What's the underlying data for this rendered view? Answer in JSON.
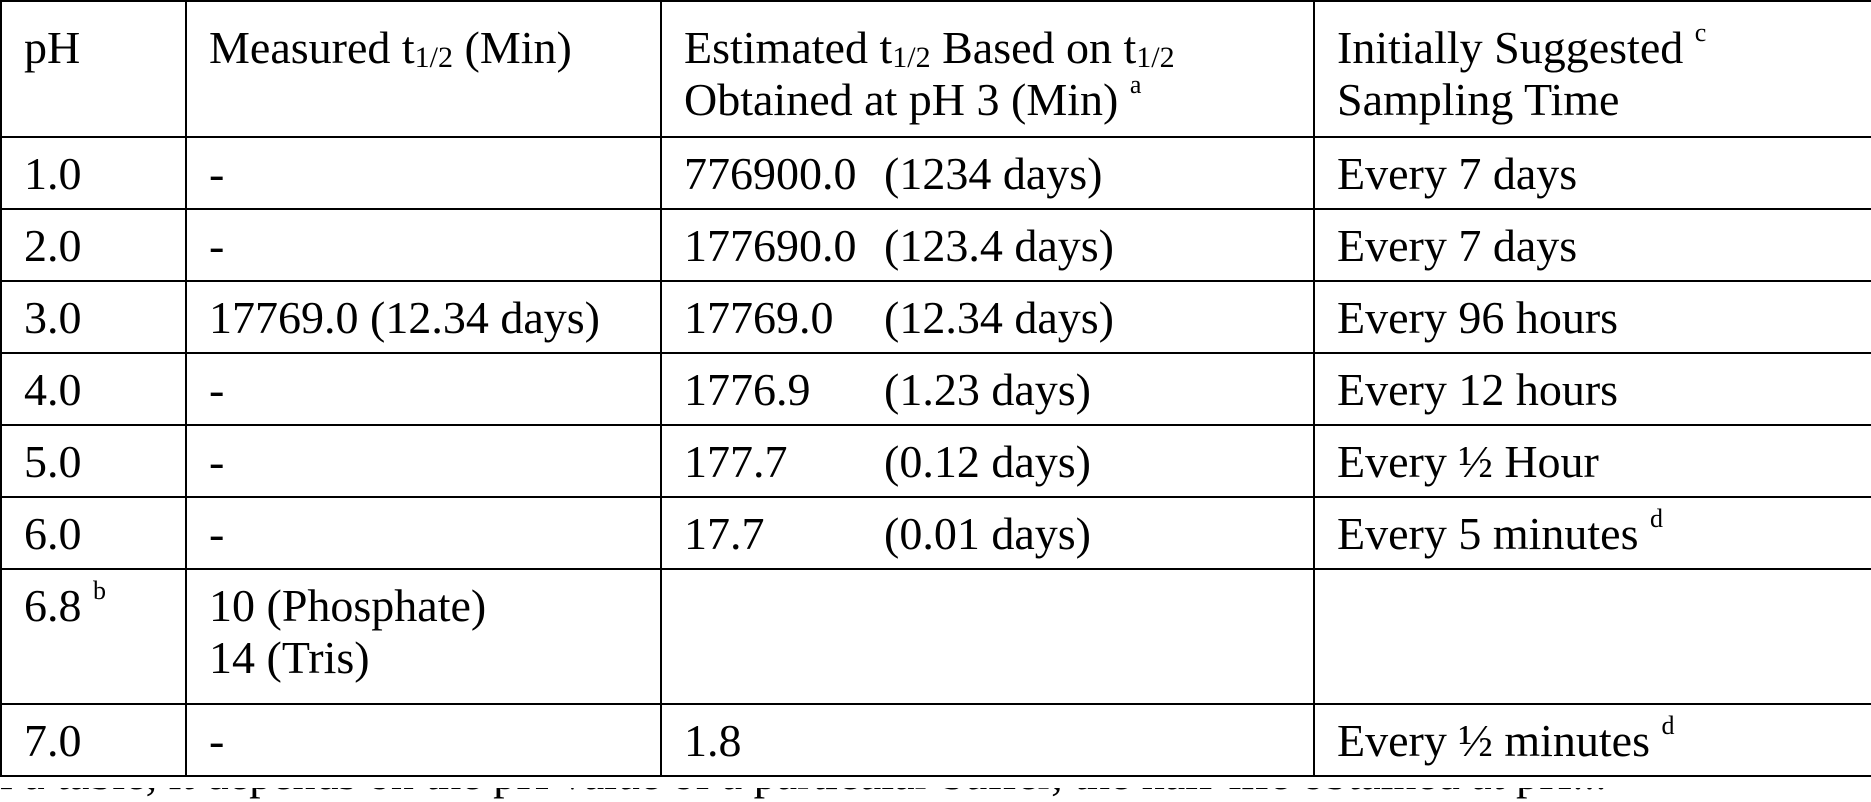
{
  "header": {
    "ph": "pH",
    "measured_prefix": "Measured t",
    "measured_sub": "1/2",
    "measured_suffix": " (Min)",
    "estimated_line1_prefix": "Estimated t",
    "estimated_line1_sub": "1/2",
    "estimated_line1_mid": " Based on t",
    "estimated_line1_sub2": "1/2",
    "estimated_line2": "Obtained at pH 3 (Min) ",
    "estimated_note": "a",
    "suggested_line1": "Initially Suggested ",
    "suggested_note": "c",
    "suggested_line2": "Sampling Time"
  },
  "rows": [
    {
      "ph": "1.0",
      "measured": "-",
      "est_value": "776900.0",
      "est_days": "(1234 days)",
      "suggested": "Every 7 days",
      "suggested_note": ""
    },
    {
      "ph": "2.0",
      "measured": "-",
      "est_value": "177690.0",
      "est_days": "(123.4 days)",
      "suggested": "Every 7 days",
      "suggested_note": ""
    },
    {
      "ph": "3.0",
      "measured": "17769.0 (12.34 days)",
      "est_value": "17769.0",
      "est_days": "(12.34 days)",
      "suggested": "Every 96 hours",
      "suggested_note": ""
    },
    {
      "ph": "4.0",
      "measured": "-",
      "est_value": "1776.9",
      "est_days": "(1.23 days)",
      "suggested": "Every 12 hours",
      "suggested_note": ""
    },
    {
      "ph": "5.0",
      "measured": "-",
      "est_value": "177.7",
      "est_days": "(0.12 days)",
      "suggested": "Every ½ Hour",
      "suggested_note": ""
    },
    {
      "ph": "6.0",
      "measured": "-",
      "est_value": "17.7",
      "est_days": "(0.01 days)",
      "suggested": "Every 5 minutes ",
      "suggested_note": "d"
    }
  ],
  "row_68": {
    "ph": "6.8 ",
    "ph_note": "b",
    "measured_line1": "10 (Phosphate)",
    "measured_line2": "14 (Tris)",
    "est_value": "",
    "suggested": ""
  },
  "row_70": {
    "ph": "7.0",
    "measured": "-",
    "est_value": "1.8",
    "suggested": "Every ½ minutes ",
    "suggested_note": "d"
  },
  "footer_fragment": "i a table, it depends on the pH value of a particular buffer, the half-life obtained at pH..."
}
